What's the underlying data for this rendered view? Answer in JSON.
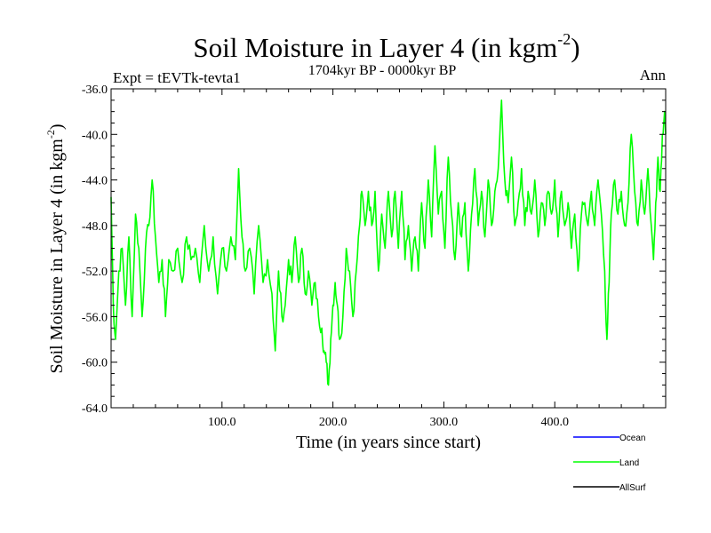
{
  "chart_data": {
    "type": "line",
    "title_main": "Soil Moisture in Layer 4 (in kgm",
    "title_sup": "-2",
    "title_close": ")",
    "left_label": "Expt = tEVTk-tevta1",
    "subtitle": "1704kyr BP - 0000kyr BP",
    "right_label": "Ann",
    "xlabel": "Time (in years since start)",
    "ylabel_main": "Soil Moisture in Layer 4 (in kgm",
    "ylabel_sup": "-2",
    "ylabel_close": ")",
    "xlim": [
      0,
      500
    ],
    "ylim": [
      -64,
      -36
    ],
    "x_ticks": [
      100,
      200,
      300,
      400
    ],
    "x_tick_labels": [
      "100.0",
      "200.0",
      "300.0",
      "400.0"
    ],
    "y_ticks": [
      -36,
      -40,
      -44,
      -48,
      -52,
      -56,
      -60,
      -64
    ],
    "y_tick_labels": [
      "-36.0",
      "-40.0",
      "-44.0",
      "-48.0",
      "-52.0",
      "-56.0",
      "-60.0",
      "-64.0"
    ],
    "legend": [
      {
        "name": "Ocean",
        "color": "#0000ff"
      },
      {
        "name": "Land",
        "color": "#00ff00"
      },
      {
        "name": "AllSurf",
        "color": "#000000"
      }
    ],
    "series": [
      {
        "name": "Land",
        "color": "#00ff00",
        "anchors": [
          [
            0,
            -45.5
          ],
          [
            2,
            -55
          ],
          [
            4,
            -58
          ],
          [
            7,
            -52
          ],
          [
            10,
            -50
          ],
          [
            13,
            -55
          ],
          [
            16,
            -49
          ],
          [
            19,
            -56
          ],
          [
            22,
            -47
          ],
          [
            25,
            -50
          ],
          [
            28,
            -56
          ],
          [
            31,
            -50
          ],
          [
            34,
            -48
          ],
          [
            37,
            -44
          ],
          [
            40,
            -49
          ],
          [
            43,
            -53
          ],
          [
            46,
            -51
          ],
          [
            49,
            -56
          ],
          [
            52,
            -51
          ],
          [
            56,
            -52
          ],
          [
            60,
            -50
          ],
          [
            64,
            -53
          ],
          [
            68,
            -49
          ],
          [
            72,
            -51
          ],
          [
            76,
            -50
          ],
          [
            80,
            -53
          ],
          [
            84,
            -48
          ],
          [
            88,
            -52
          ],
          [
            92,
            -49
          ],
          [
            96,
            -54
          ],
          [
            100,
            -50
          ],
          [
            104,
            -52
          ],
          [
            108,
            -49
          ],
          [
            112,
            -51
          ],
          [
            115,
            -43
          ],
          [
            118,
            -49
          ],
          [
            121,
            -52
          ],
          [
            125,
            -50
          ],
          [
            129,
            -54
          ],
          [
            133,
            -48
          ],
          [
            137,
            -53
          ],
          [
            141,
            -51
          ],
          [
            145,
            -54
          ],
          [
            148,
            -59
          ],
          [
            151,
            -52
          ],
          [
            154,
            -56
          ],
          [
            157,
            -55
          ],
          [
            160,
            -51
          ],
          [
            163,
            -53
          ],
          [
            166,
            -49
          ],
          [
            169,
            -53
          ],
          [
            172,
            -50
          ],
          [
            175,
            -54
          ],
          [
            178,
            -52
          ],
          [
            181,
            -55
          ],
          [
            184,
            -53
          ],
          [
            187,
            -56
          ],
          [
            190,
            -57
          ],
          [
            192,
            -59
          ],
          [
            194,
            -60
          ],
          [
            196,
            -62
          ],
          [
            198,
            -58
          ],
          [
            200,
            -55
          ],
          [
            202,
            -53
          ],
          [
            204,
            -55
          ],
          [
            206,
            -58
          ],
          [
            209,
            -56
          ],
          [
            212,
            -50
          ],
          [
            215,
            -52
          ],
          [
            218,
            -56
          ],
          [
            221,
            -52
          ],
          [
            224,
            -48
          ],
          [
            226,
            -45
          ],
          [
            229,
            -48
          ],
          [
            232,
            -45
          ],
          [
            235,
            -48
          ],
          [
            238,
            -45
          ],
          [
            241,
            -52
          ],
          [
            244,
            -47
          ],
          [
            247,
            -50
          ],
          [
            250,
            -45
          ],
          [
            253,
            -49
          ],
          [
            256,
            -45
          ],
          [
            259,
            -50
          ],
          [
            262,
            -45
          ],
          [
            265,
            -51
          ],
          [
            268,
            -48
          ],
          [
            271,
            -52
          ],
          [
            274,
            -49
          ],
          [
            277,
            -52
          ],
          [
            280,
            -46
          ],
          [
            283,
            -50
          ],
          [
            286,
            -44
          ],
          [
            289,
            -49
          ],
          [
            292,
            -41
          ],
          [
            295,
            -47
          ],
          [
            298,
            -45
          ],
          [
            301,
            -50
          ],
          [
            304,
            -42
          ],
          [
            307,
            -47
          ],
          [
            310,
            -51
          ],
          [
            313,
            -46
          ],
          [
            316,
            -49
          ],
          [
            319,
            -46
          ],
          [
            322,
            -52
          ],
          [
            325,
            -47
          ],
          [
            328,
            -43
          ],
          [
            331,
            -48
          ],
          [
            334,
            -45
          ],
          [
            337,
            -49
          ],
          [
            340,
            -44
          ],
          [
            343,
            -48
          ],
          [
            346,
            -45
          ],
          [
            349,
            -43
          ],
          [
            352,
            -37
          ],
          [
            355,
            -44
          ],
          [
            358,
            -46
          ],
          [
            361,
            -42
          ],
          [
            364,
            -48
          ],
          [
            367,
            -46
          ],
          [
            370,
            -43
          ],
          [
            373,
            -48
          ],
          [
            376,
            -45
          ],
          [
            379,
            -47
          ],
          [
            382,
            -44
          ],
          [
            385,
            -49
          ],
          [
            388,
            -46
          ],
          [
            391,
            -48
          ],
          [
            394,
            -45
          ],
          [
            397,
            -47
          ],
          [
            400,
            -44
          ],
          [
            403,
            -49
          ],
          [
            406,
            -45
          ],
          [
            409,
            -48
          ],
          [
            412,
            -46
          ],
          [
            415,
            -50
          ],
          [
            418,
            -47
          ],
          [
            421,
            -52
          ],
          [
            424,
            -47
          ],
          [
            427,
            -46
          ],
          [
            430,
            -48
          ],
          [
            433,
            -45
          ],
          [
            436,
            -48
          ],
          [
            439,
            -44
          ],
          [
            442,
            -47
          ],
          [
            445,
            -52
          ],
          [
            447,
            -58
          ],
          [
            449,
            -53
          ],
          [
            451,
            -47
          ],
          [
            454,
            -44
          ],
          [
            457,
            -47
          ],
          [
            460,
            -45
          ],
          [
            463,
            -48
          ],
          [
            466,
            -46
          ],
          [
            469,
            -40
          ],
          [
            472,
            -45
          ],
          [
            475,
            -48
          ],
          [
            478,
            -44
          ],
          [
            481,
            -47
          ],
          [
            484,
            -43
          ],
          [
            487,
            -48
          ],
          [
            489,
            -51
          ],
          [
            491,
            -46
          ],
          [
            493,
            -42
          ],
          [
            495,
            -45
          ],
          [
            497,
            -40
          ],
          [
            499,
            -38
          ],
          [
            500,
            -40
          ]
        ]
      }
    ]
  }
}
